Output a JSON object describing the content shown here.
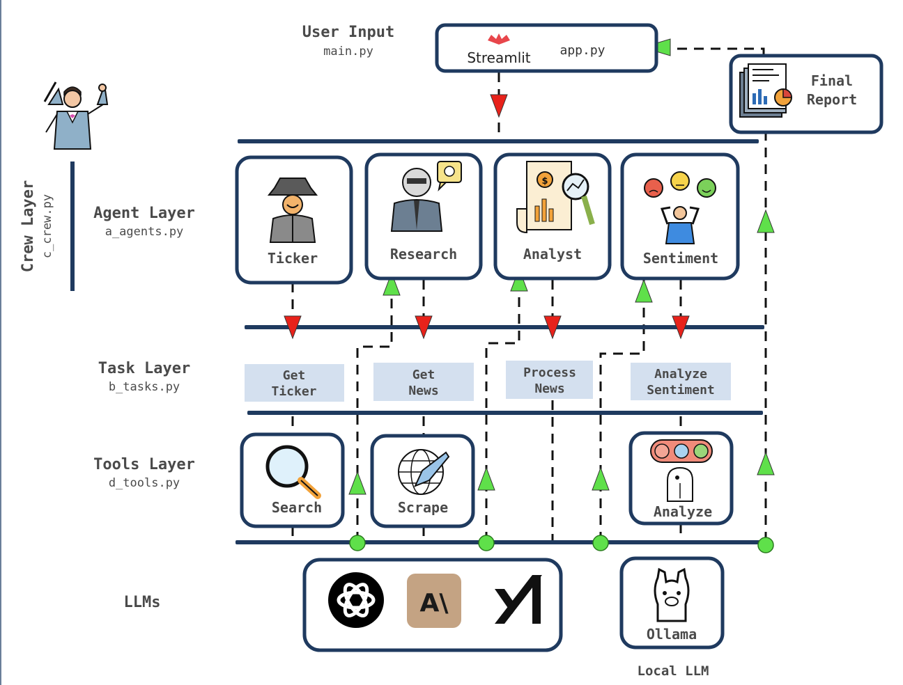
{
  "header": {
    "user_input_title": "User Input",
    "user_input_file": "main.py",
    "streamlit_label": "Streamlit",
    "app_file": "app.py",
    "final_report_line1": "Final",
    "final_report_line2": "Report"
  },
  "layers": {
    "crew": {
      "title": "Crew Layer",
      "file": "c_crew.py"
    },
    "agent": {
      "title": "Agent Layer",
      "file": "a_agents.py"
    },
    "task": {
      "title": "Task Layer",
      "file": "b_tasks.py"
    },
    "tools": {
      "title": "Tools Layer",
      "file": "d_tools.py"
    },
    "llms": {
      "title": "LLMs"
    }
  },
  "agents": [
    {
      "label": "Ticker",
      "icon": "spy-agent-icon"
    },
    {
      "label": "Research",
      "icon": "researcher-icon"
    },
    {
      "label": "Analyst",
      "icon": "financial-analysis-icon"
    },
    {
      "label": "Sentiment",
      "icon": "sentiment-faces-icon"
    }
  ],
  "tasks": [
    {
      "line1": "Get",
      "line2": "Ticker"
    },
    {
      "line1": "Get",
      "line2": "News"
    },
    {
      "line1": "Process",
      "line2": "News"
    },
    {
      "line1": "Analyze",
      "line2": "Sentiment"
    }
  ],
  "tools": [
    {
      "label": "Search",
      "icon": "magnifier-icon"
    },
    {
      "label": "Scrape",
      "icon": "globe-scrape-icon"
    },
    {
      "label": "Analyze",
      "icon": "ai-sentiment-icon"
    }
  ],
  "llms": {
    "providers": [
      "openai-logo-icon",
      "anthropic-logo-icon",
      "xai-logo-icon"
    ],
    "anthropic_mark": "A\\",
    "local": {
      "label": "Ollama",
      "caption": "Local LLM",
      "icon": "llama-icon"
    }
  },
  "colors": {
    "navy": "#1f3a5f",
    "arrow_down": "#e8221b",
    "arrow_up": "#5fe04a",
    "task_fill": "#d4e0ef",
    "anthropic_bg": "#c4a383"
  }
}
